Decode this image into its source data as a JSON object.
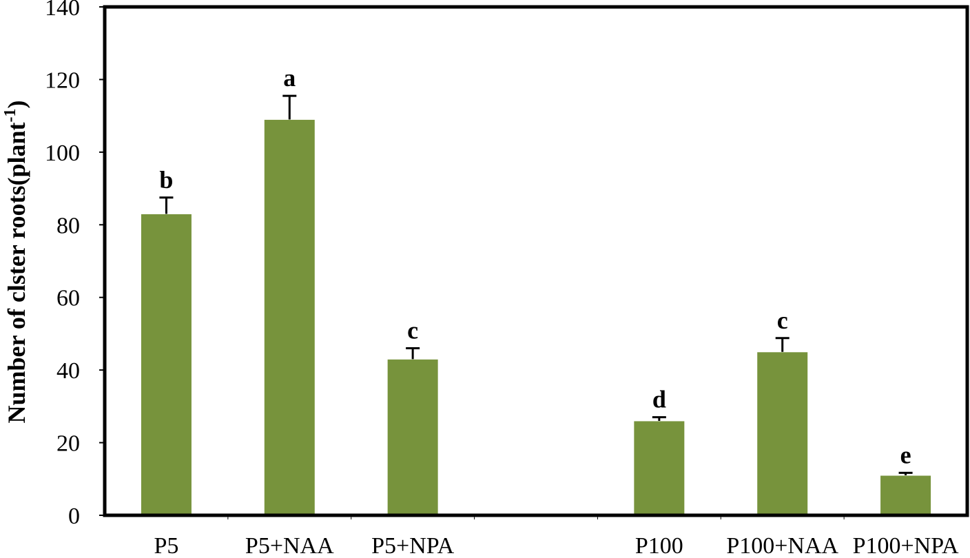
{
  "chart_data": {
    "type": "bar",
    "title": "",
    "xlabel": "",
    "ylabel": "Number of clster roots(plant",
    "ylabel_superscript": "-1",
    "ylabel_suffix": ")",
    "ylim": [
      0,
      140
    ],
    "yticks": [
      "0",
      "20",
      "40",
      "60",
      "80",
      "100",
      "120",
      "140"
    ],
    "grid": false,
    "legend": "none",
    "categories": [
      "P5",
      "P5+NAA",
      "P5+NPA",
      "",
      "P100",
      "P100+NAA",
      "P100+NPA"
    ],
    "values": [
      83,
      109,
      43,
      null,
      26,
      45,
      11
    ],
    "errors": [
      4.5,
      6.5,
      3,
      null,
      1,
      3.8,
      0.7
    ],
    "significance": [
      "b",
      "a",
      "c",
      "",
      "d",
      "c",
      "e"
    ],
    "bar_color": "#77933c"
  }
}
